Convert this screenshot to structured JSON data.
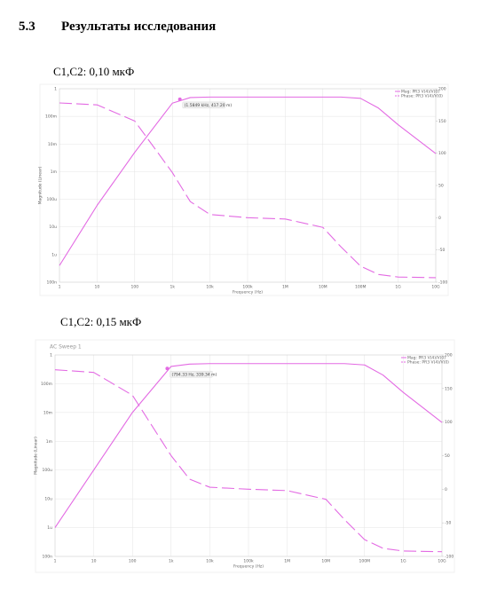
{
  "heading": {
    "number": "5.3",
    "title": "Результаты исследования"
  },
  "captions": [
    "C1,C2:  0,10 мкФ",
    "C1,C2:  0,15 мкФ"
  ],
  "chart_data": [
    {
      "type": "line",
      "x_label": "Frequency (Hz)",
      "y_label": "Magnitude (Linear)",
      "log_x": true,
      "log_y": true,
      "grid": true,
      "legend": "upper right",
      "xlim": [
        1,
        10000000000
      ],
      "ylim": [
        1e-07,
        1
      ],
      "y2lim": [
        -100,
        200
      ],
      "xticks": [
        1,
        10,
        100,
        {
          "value": 1000,
          "label": "1k"
        },
        {
          "value": 10000,
          "label": "10k"
        },
        {
          "value": 100000,
          "label": "100k"
        },
        {
          "value": 1000000,
          "label": "1M"
        },
        {
          "value": 10000000,
          "label": "10M"
        },
        {
          "value": 100000000,
          "label": "100M"
        },
        {
          "value": 1000000000,
          "label": "1G"
        },
        {
          "value": 10000000000,
          "label": "10G"
        }
      ],
      "yticks": [
        1,
        {
          "value": 0.1,
          "label": "100m"
        },
        {
          "value": 0.01,
          "label": "10m"
        },
        {
          "value": 0.001,
          "label": "1m"
        },
        {
          "value": 0.0001,
          "label": "100u"
        },
        {
          "value": 1e-05,
          "label": "10u"
        },
        {
          "value": 1e-06,
          "label": "1u"
        },
        {
          "value": 1e-07,
          "label": "100n"
        }
      ],
      "y2ticks": [
        200,
        150,
        100,
        50,
        0,
        -50,
        -100
      ],
      "x": [
        1,
        10,
        100,
        1000,
        3000,
        10000,
        100000,
        1000000,
        10000000,
        30000000,
        100000000,
        300000000,
        1000000000,
        10000000000
      ],
      "series": [
        {
          "name": "Mag: PR3 V(4)/V(0)",
          "color": "#e36ae3",
          "dash": false,
          "values": [
            4e-07,
            6e-05,
            0.005,
            0.3,
            0.48,
            0.5,
            0.5,
            0.5,
            0.5,
            0.5,
            0.45,
            0.2,
            0.05,
            0.0045
          ]
        },
        {
          "name": "Phase: PR3 V(4)/V(0)",
          "color": "#e36ae3",
          "dash": true,
          "axis": "y2",
          "values": [
            178,
            175,
            150,
            70,
            25,
            5,
            0,
            -2,
            -15,
            -45,
            -75,
            -88,
            -92,
            -93
          ]
        }
      ],
      "annotation": {
        "text": "(1.5849 kHz, 417.20 m)",
        "x": 1584.9,
        "y": 0.4172
      }
    },
    {
      "type": "line",
      "title": "AC Sweep 1",
      "x_label": "Frequency (Hz)",
      "y_label": "Magnitude (Linear)",
      "log_x": true,
      "log_y": true,
      "grid": true,
      "legend": "upper right",
      "xlim": [
        1,
        10000000000
      ],
      "ylim": [
        1e-07,
        1
      ],
      "y2lim": [
        -100,
        200
      ],
      "xticks": [
        1,
        10,
        100,
        {
          "value": 1000,
          "label": "1k"
        },
        {
          "value": 10000,
          "label": "10k"
        },
        {
          "value": 100000,
          "label": "100k"
        },
        {
          "value": 1000000,
          "label": "1M"
        },
        {
          "value": 10000000,
          "label": "10M"
        },
        {
          "value": 100000000,
          "label": "100M"
        },
        {
          "value": 1000000000,
          "label": "1G"
        },
        {
          "value": 10000000000,
          "label": "10G"
        }
      ],
      "yticks": [
        1,
        {
          "value": 0.1,
          "label": "100m"
        },
        {
          "value": 0.01,
          "label": "10m"
        },
        {
          "value": 0.001,
          "label": "1m"
        },
        {
          "value": 0.0001,
          "label": "100u"
        },
        {
          "value": 1e-05,
          "label": "10u"
        },
        {
          "value": 1e-06,
          "label": "1u"
        },
        {
          "value": 1e-07,
          "label": "100n"
        }
      ],
      "y2ticks": [
        200,
        150,
        100,
        50,
        0,
        -50,
        -100
      ],
      "x": [
        1,
        10,
        100,
        1000,
        3000,
        10000,
        100000,
        1000000,
        10000000,
        30000000,
        100000000,
        300000000,
        1000000000,
        10000000000
      ],
      "series": [
        {
          "name": "Mag: PR3 V(4)/V(0)",
          "color": "#e36ae3",
          "dash": false,
          "values": [
            1e-06,
            0.0001,
            0.01,
            0.4,
            0.48,
            0.5,
            0.5,
            0.5,
            0.5,
            0.5,
            0.45,
            0.2,
            0.05,
            0.0045
          ]
        },
        {
          "name": "Phase: PR3 V(4)/V(0)",
          "color": "#e36ae3",
          "dash": true,
          "axis": "y2",
          "values": [
            178,
            174,
            140,
            50,
            15,
            3,
            0,
            -2,
            -15,
            -45,
            -75,
            -88,
            -92,
            -93
          ]
        }
      ],
      "annotation": {
        "text": "(794.33 Hz, 339.34 m)",
        "x": 794.33,
        "y": 0.33934
      }
    }
  ]
}
